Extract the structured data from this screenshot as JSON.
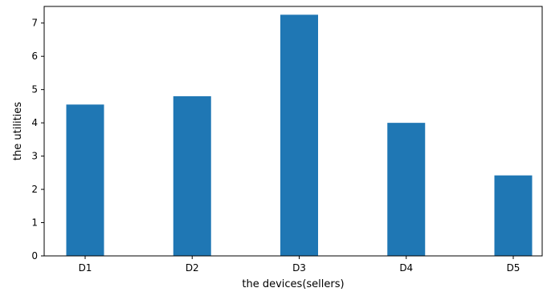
{
  "chart_data": {
    "type": "bar",
    "title": "",
    "categories": [
      "D1",
      "D2",
      "D3",
      "D4",
      "D5"
    ],
    "values": [
      4.55,
      4.8,
      7.25,
      4.0,
      2.42
    ],
    "xlabel": "the devices(sellers)",
    "ylabel": "the utilities",
    "ylim": [
      0,
      7.5
    ],
    "yticks": [
      "0",
      "1",
      "2",
      "3",
      "4",
      "5",
      "6",
      "7"
    ],
    "bar_color": "#1f77b4",
    "grid": false,
    "legend": "none"
  }
}
